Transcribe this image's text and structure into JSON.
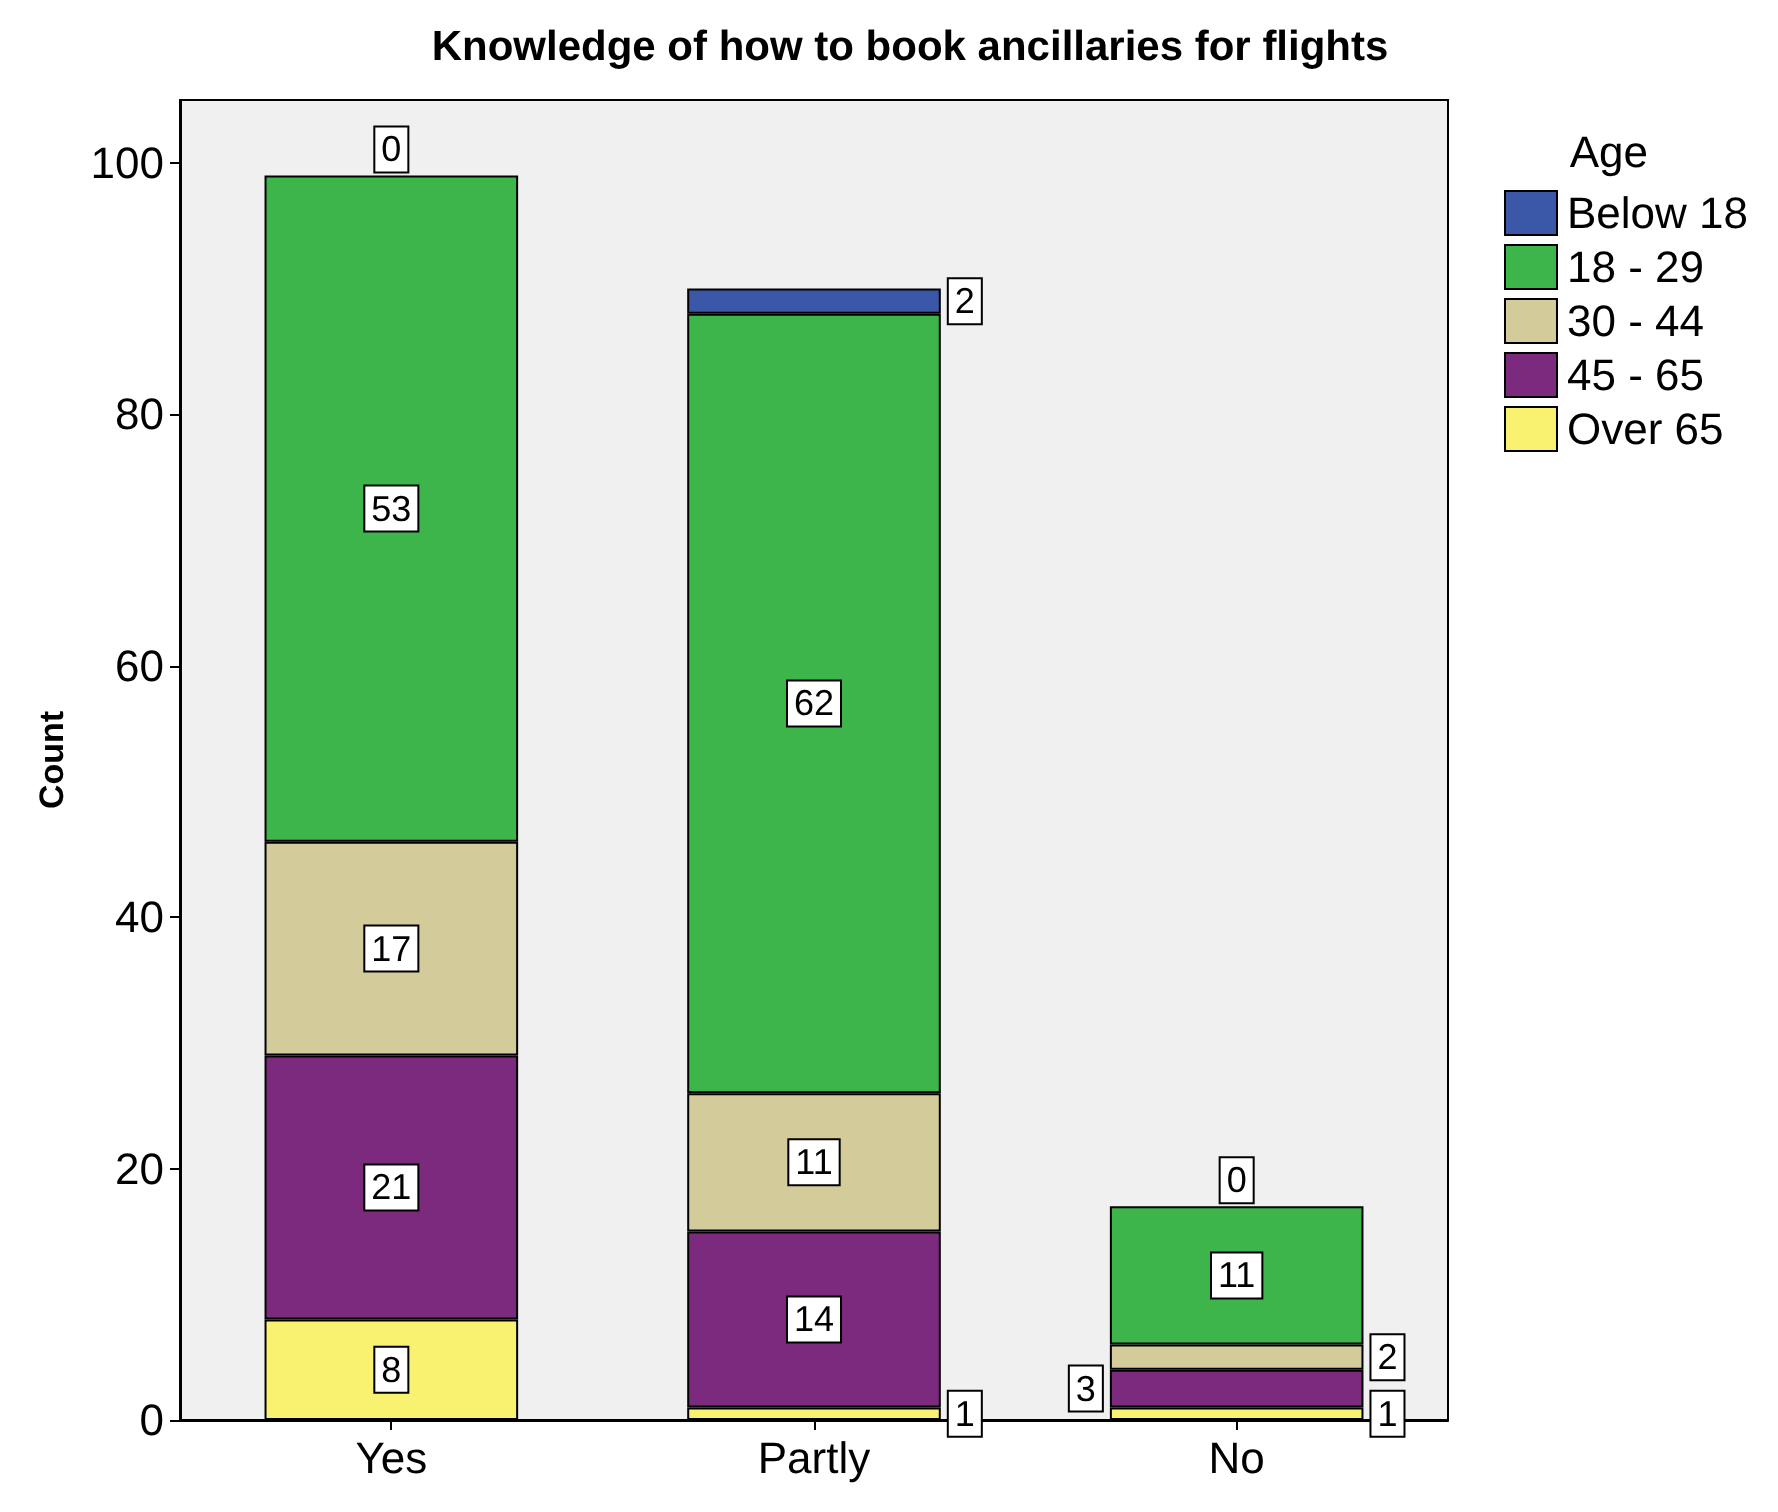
{
  "chart_data": {
    "type": "bar",
    "title": "Knowledge of how to book ancillaries for flights",
    "xlabel": null,
    "ylabel": "Count",
    "legend_title": "Age",
    "categories": [
      "Yes",
      "Partly",
      "No"
    ],
    "stacked": true,
    "data_labels": true,
    "legend": "right",
    "grid": false,
    "ylim": [
      0,
      105
    ],
    "yticks": [
      0,
      20,
      40,
      60,
      80,
      100
    ],
    "series": [
      {
        "name": "Over 65",
        "color": "#f8f270",
        "values": [
          8,
          1,
          1
        ]
      },
      {
        "name": "45 - 65",
        "color": "#7b2a7d",
        "values": [
          21,
          14,
          3
        ]
      },
      {
        "name": "30 - 44",
        "color": "#d3cc9a",
        "values": [
          17,
          11,
          2
        ]
      },
      {
        "name": "18 - 29",
        "color": "#3db54a",
        "values": [
          53,
          62,
          11
        ]
      },
      {
        "name": "Below 18",
        "color": "#3a57a8",
        "values": [
          0,
          2,
          0
        ]
      }
    ]
  }
}
